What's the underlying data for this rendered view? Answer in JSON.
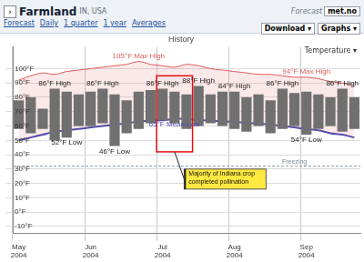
{
  "header": {
    "button": "›",
    "place": "Farmland",
    "region": "IN, USA",
    "forecast_by": "Forecast",
    "provider": "met.no",
    "tabs": [
      "Forecast",
      "Daily",
      "1 quarter",
      "1 year",
      "Averages"
    ],
    "menus": [
      "Download ▾",
      "Graphs ▾"
    ],
    "chart_menu": "Temperature ▾"
  },
  "chart_data": {
    "type": "bar",
    "title": "History",
    "categories": [
      "May 2004",
      null,
      null,
      null,
      null,
      null,
      "Jun 2004",
      null,
      null,
      null,
      null,
      null,
      "Jul 2004",
      null,
      null,
      null,
      null,
      null,
      "Aug 2004",
      null,
      null,
      null,
      null,
      null,
      "Sep 2004",
      null,
      null,
      null,
      null
    ],
    "series": [
      {
        "name": "High",
        "color": "#707070",
        "values": [
          78,
          80,
          72,
          86,
          84,
          82,
          84,
          86,
          82,
          78,
          84,
          85,
          86,
          84,
          82,
          88,
          82,
          84,
          84,
          80,
          82,
          78,
          86,
          83,
          84,
          82,
          80,
          86,
          80
        ]
      },
      {
        "name": "Low",
        "color": "#707070",
        "values": [
          58,
          55,
          58,
          50,
          52,
          60,
          60,
          62,
          46,
          55,
          58,
          62,
          64,
          62,
          58,
          60,
          62,
          60,
          58,
          56,
          60,
          55,
          58,
          60,
          54,
          58,
          60,
          56,
          58
        ]
      },
      {
        "name": "Max High",
        "type": "line",
        "color": "#e05a5a",
        "values": [
          92,
          95,
          97,
          96,
          98,
          99,
          100,
          101,
          102,
          103,
          105,
          103,
          102,
          101,
          103,
          102,
          100,
          99,
          98,
          97,
          96,
          96,
          95,
          94,
          94,
          93,
          91,
          90,
          88
        ]
      },
      {
        "name": "Mean Low",
        "type": "line",
        "color": "#4a4ab0",
        "values": [
          50,
          52,
          54,
          56,
          57,
          58,
          59,
          60,
          61,
          62,
          63,
          64,
          64,
          65,
          65,
          64,
          64,
          63,
          63,
          62,
          62,
          61,
          60,
          59,
          58,
          57,
          55,
          54,
          52
        ]
      }
    ],
    "annotations": [
      {
        "text": "86°F High",
        "x": 3,
        "y": 86,
        "series": "High"
      },
      {
        "text": "86°F High",
        "x": 7,
        "y": 86,
        "series": "High"
      },
      {
        "text": "105°F Max High",
        "x": 10,
        "y": 105,
        "series": "Max High"
      },
      {
        "text": "86°F High",
        "x": 12,
        "y": 86,
        "series": "High"
      },
      {
        "text": "88°F High",
        "x": 15,
        "y": 88,
        "series": "High"
      },
      {
        "text": "84°F High",
        "x": 18,
        "y": 84,
        "series": "High"
      },
      {
        "text": "86°F High",
        "x": 22,
        "y": 86,
        "series": "High"
      },
      {
        "text": "94°F Max High",
        "x": 24,
        "y": 94,
        "series": "Max High"
      },
      {
        "text": "86°F High",
        "x": 27,
        "y": 86,
        "series": "High"
      },
      {
        "text": "52°F Low",
        "x": 4,
        "y": 52,
        "series": "Low"
      },
      {
        "text": "46°F Low",
        "x": 8,
        "y": 46,
        "series": "Low"
      },
      {
        "text": "65°F Mean Low",
        "x": 13,
        "y": 65,
        "series": "Mean Low"
      },
      {
        "text": "54°F Low",
        "x": 24,
        "y": 54,
        "series": "Low"
      }
    ],
    "reference_lines": [
      {
        "value": 32,
        "label": "Freezing"
      }
    ],
    "callout": "Majority of Indiana crop completed pollination",
    "ylim": [
      -15,
      115
    ],
    "yticks": [
      {
        "value": -10,
        "label": "-10°F"
      },
      {
        "value": 0,
        "label": "0°F"
      },
      {
        "value": 10,
        "label": "10°F"
      },
      {
        "value": 20,
        "label": "20°F"
      },
      {
        "value": 30,
        "label": "30°F"
      },
      {
        "value": 40,
        "label": "40°F"
      },
      {
        "value": 50,
        "label": "50°F"
      },
      {
        "value": 60,
        "label": "60°F"
      },
      {
        "value": 70,
        "label": "70°F"
      },
      {
        "value": 80,
        "label": "80°F"
      },
      {
        "value": 90,
        "label": "90°F"
      },
      {
        "value": 100,
        "label": "100°F"
      }
    ],
    "grid": true
  }
}
